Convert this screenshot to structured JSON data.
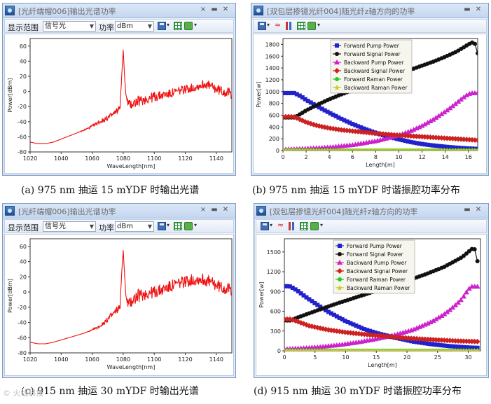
{
  "windows": {
    "spectrum_a": {
      "title": "[光纤端帽006]输出光谱功率",
      "toolbar": {
        "range_label": "显示范围",
        "range_value": "信号光",
        "power_label": "功率",
        "power_value": "dBm"
      },
      "caption": "(a) 975 nm 抽运 15 mYDF 时输出光谱"
    },
    "power_b": {
      "title": "[双包层掺镱光纤004]随光纤z轴方向的功率",
      "caption": "(b) 975 nm 抽运 15 mYDF 时谐振腔功率分布"
    },
    "spectrum_c": {
      "title": "[光纤端帽006]输出光谱功率",
      "toolbar": {
        "range_label": "显示范围",
        "range_value": "信号光",
        "power_label": "功率",
        "power_value": "dBm"
      },
      "caption": "(c) 915 nm 抽运 30 mYDF 时输出光谱"
    },
    "power_d": {
      "title": "[双包层掺镱光纤004]随光纤z轴方向的功率",
      "caption": "(d) 915 nm 抽运 30 mYDF 时谐振腔功率分布"
    }
  },
  "watermark": "©  火线科技",
  "icons": {
    "window_icon": "fiber-app-icon",
    "save": "save-icon",
    "grid": "grid-icon",
    "lock": "lock-icon",
    "wave": "wave-icon",
    "bars": "bars-icon"
  },
  "colors": {
    "spectrum": "#ee1111",
    "forward_pump": "#2222cc",
    "forward_signal": "#111111",
    "backward_pump": "#cc22cc",
    "backward_signal": "#cc2222",
    "forward_raman": "#22cc22",
    "backward_raman": "#cccc22"
  },
  "chart_data": [
    {
      "id": "a",
      "type": "line",
      "xlabel": "WaveLength[nm]",
      "ylabel": "Power[dBm]",
      "xlim": [
        1020,
        1150
      ],
      "ylim": [
        -80,
        70
      ],
      "xticks": [
        1020,
        1040,
        1060,
        1080,
        1100,
        1120,
        1140
      ],
      "yticks": [
        -80,
        -60,
        -40,
        -20,
        0,
        20,
        40,
        60
      ],
      "grid": false,
      "series": [
        {
          "color": "#ee1111",
          "x": [
            1020,
            1025,
            1030,
            1035,
            1040,
            1045,
            1050,
            1055,
            1060,
            1065,
            1070,
            1073,
            1076,
            1078,
            1079,
            1080,
            1081,
            1082,
            1084,
            1086,
            1090,
            1095,
            1100,
            1105,
            1110,
            1115,
            1120,
            1125,
            1130,
            1133,
            1136,
            1140,
            1145,
            1150
          ],
          "y": [
            -67,
            -69,
            -69,
            -67,
            -63,
            -59,
            -55,
            -51,
            -46,
            -40,
            -35,
            -31,
            -26,
            -20,
            20,
            55,
            15,
            -10,
            -18,
            -16,
            -13,
            -10,
            -7,
            -5,
            -3,
            0,
            3,
            5,
            8,
            10,
            7,
            3,
            0,
            -3
          ],
          "noise": [
            0,
            0,
            0,
            0,
            0,
            0,
            0,
            1,
            2,
            3,
            4,
            4,
            4,
            3,
            0,
            0,
            0,
            5,
            7,
            7,
            7,
            7,
            7,
            6,
            6,
            6,
            6,
            6,
            6,
            6,
            6,
            7,
            7,
            7
          ]
        }
      ]
    },
    {
      "id": "b",
      "type": "line",
      "xlabel": "Length[m]",
      "ylabel": "Power[w]",
      "xlim": [
        0,
        16.8
      ],
      "ylim": [
        0,
        1900
      ],
      "xticks": [
        0,
        2,
        4,
        6,
        8,
        10,
        12,
        14,
        16
      ],
      "yticks": [
        0,
        200,
        400,
        600,
        800,
        1000,
        1200,
        1400,
        1600,
        1800
      ],
      "grid": false,
      "legend": "top-center",
      "series": [
        {
          "name": "Forward Pump Power",
          "color": "#2222cc",
          "marker": "square",
          "x": [
            0,
            0.5,
            1,
            1.5,
            2,
            3,
            4,
            5,
            6,
            7,
            8,
            9,
            10,
            11,
            12,
            13,
            14,
            15,
            16,
            16.8
          ],
          "y": [
            975,
            975,
            975,
            925,
            860,
            745,
            640,
            540,
            450,
            370,
            300,
            240,
            190,
            145,
            110,
            85,
            65,
            48,
            35,
            28
          ]
        },
        {
          "name": "Forward Signal Power",
          "color": "#111111",
          "marker": "circle",
          "x": [
            0,
            0.5,
            1,
            2,
            3,
            4,
            5,
            6,
            7,
            8,
            9,
            10,
            11,
            12,
            13,
            14,
            15,
            16,
            16.5,
            16.8
          ],
          "y": [
            560,
            560,
            560,
            680,
            780,
            870,
            950,
            1020,
            1090,
            1160,
            1230,
            1300,
            1370,
            1440,
            1510,
            1590,
            1680,
            1800,
            1850,
            1650
          ]
        },
        {
          "name": "Backward Pump Power",
          "color": "#cc22cc",
          "marker": "triangle",
          "x": [
            0,
            1,
            2,
            4,
            6,
            8,
            10,
            11,
            12,
            13,
            14,
            15,
            15.5,
            16,
            16.3,
            16.8
          ],
          "y": [
            20,
            25,
            32,
            55,
            95,
            160,
            260,
            330,
            420,
            530,
            660,
            810,
            890,
            960,
            975,
            975
          ]
        },
        {
          "name": "Backward Signal Power",
          "color": "#cc2222",
          "marker": "diamond",
          "x": [
            0,
            0.5,
            1,
            2,
            3,
            4,
            5,
            6,
            8,
            10,
            12,
            14,
            16,
            16.8
          ],
          "y": [
            570,
            575,
            570,
            480,
            420,
            380,
            350,
            330,
            290,
            260,
            235,
            210,
            185,
            175
          ]
        },
        {
          "name": "Forward Raman Power",
          "color": "#22cc22",
          "marker": "circle",
          "x": [
            0,
            16.8
          ],
          "y": [
            0,
            0
          ]
        },
        {
          "name": "Backward Raman Power",
          "color": "#cccc22",
          "marker": "star",
          "x": [
            0,
            16.8
          ],
          "y": [
            0,
            0
          ]
        }
      ]
    },
    {
      "id": "c",
      "type": "line",
      "xlabel": "WaveLength[nm]",
      "ylabel": "Power[dBm]",
      "xlim": [
        1020,
        1150
      ],
      "ylim": [
        -80,
        70
      ],
      "xticks": [
        1020,
        1040,
        1060,
        1080,
        1100,
        1120,
        1140
      ],
      "yticks": [
        -80,
        -60,
        -40,
        -20,
        0,
        20,
        40,
        60
      ],
      "grid": false,
      "series": [
        {
          "color": "#ee1111",
          "x": [
            1020,
            1025,
            1030,
            1035,
            1040,
            1045,
            1050,
            1055,
            1060,
            1065,
            1070,
            1073,
            1076,
            1078,
            1079,
            1080,
            1081,
            1082,
            1084,
            1086,
            1090,
            1095,
            1100,
            1105,
            1110,
            1115,
            1120,
            1125,
            1130,
            1135,
            1140,
            1145,
            1150
          ],
          "y": [
            -66,
            -68,
            -68,
            -66,
            -63,
            -60,
            -57,
            -54,
            -50,
            -45,
            -36,
            -30,
            -24,
            -18,
            25,
            55,
            18,
            -12,
            -16,
            -10,
            -5,
            -2,
            0,
            3,
            7,
            11,
            14,
            16,
            17,
            14,
            9,
            5,
            3
          ],
          "noise": [
            0,
            0,
            0,
            0,
            0,
            0,
            0,
            0,
            1,
            2,
            4,
            5,
            5,
            4,
            0,
            0,
            0,
            6,
            8,
            9,
            9,
            8,
            8,
            8,
            8,
            8,
            8,
            8,
            8,
            8,
            8,
            8,
            8
          ]
        }
      ]
    },
    {
      "id": "d",
      "type": "line",
      "xlabel": "Length[m]",
      "ylabel": "Power[w]",
      "xlim": [
        0,
        32
      ],
      "ylim": [
        0,
        1700
      ],
      "xticks": [
        0,
        5,
        10,
        15,
        20,
        25,
        30
      ],
      "yticks": [
        0,
        300,
        600,
        900,
        1200,
        1500
      ],
      "grid": false,
      "legend": "top-center",
      "series": [
        {
          "name": "Forward Pump Power",
          "color": "#2222cc",
          "marker": "square",
          "x": [
            0,
            0.5,
            1,
            2,
            3,
            5,
            7,
            10,
            13,
            15,
            18,
            21,
            24,
            27,
            30,
            31.5
          ],
          "y": [
            980,
            980,
            975,
            920,
            850,
            720,
            600,
            450,
            330,
            270,
            200,
            140,
            100,
            70,
            50,
            45
          ]
        },
        {
          "name": "Forward Signal Power",
          "color": "#111111",
          "marker": "circle",
          "x": [
            0,
            1,
            2,
            5,
            8,
            11,
            14,
            17,
            20,
            23,
            26,
            29,
            30.5,
            31,
            31.5
          ],
          "y": [
            460,
            460,
            500,
            600,
            700,
            790,
            880,
            970,
            1060,
            1160,
            1270,
            1420,
            1540,
            1560,
            1360
          ]
        },
        {
          "name": "Backward Pump Power",
          "color": "#cc22cc",
          "marker": "triangle",
          "x": [
            0,
            3,
            6,
            9,
            12,
            15,
            18,
            21,
            24,
            26,
            27,
            28,
            29,
            30,
            30.5,
            31.5
          ],
          "y": [
            25,
            40,
            60,
            90,
            130,
            180,
            240,
            320,
            440,
            550,
            620,
            700,
            790,
            930,
            975,
            975
          ]
        },
        {
          "name": "Backward Signal Power",
          "color": "#cc2222",
          "marker": "diamond",
          "x": [
            0,
            1,
            2,
            4,
            7,
            10,
            13,
            16,
            19,
            22,
            25,
            28,
            31.5
          ],
          "y": [
            480,
            480,
            450,
            380,
            320,
            280,
            250,
            225,
            200,
            180,
            165,
            150,
            140
          ]
        },
        {
          "name": "Forward Raman Power",
          "color": "#22cc22",
          "marker": "circle",
          "x": [
            0,
            31.5
          ],
          "y": [
            0,
            0
          ]
        },
        {
          "name": "Backward Raman Power",
          "color": "#cccc22",
          "marker": "star",
          "x": [
            0,
            31.5
          ],
          "y": [
            0,
            0
          ]
        }
      ]
    }
  ]
}
